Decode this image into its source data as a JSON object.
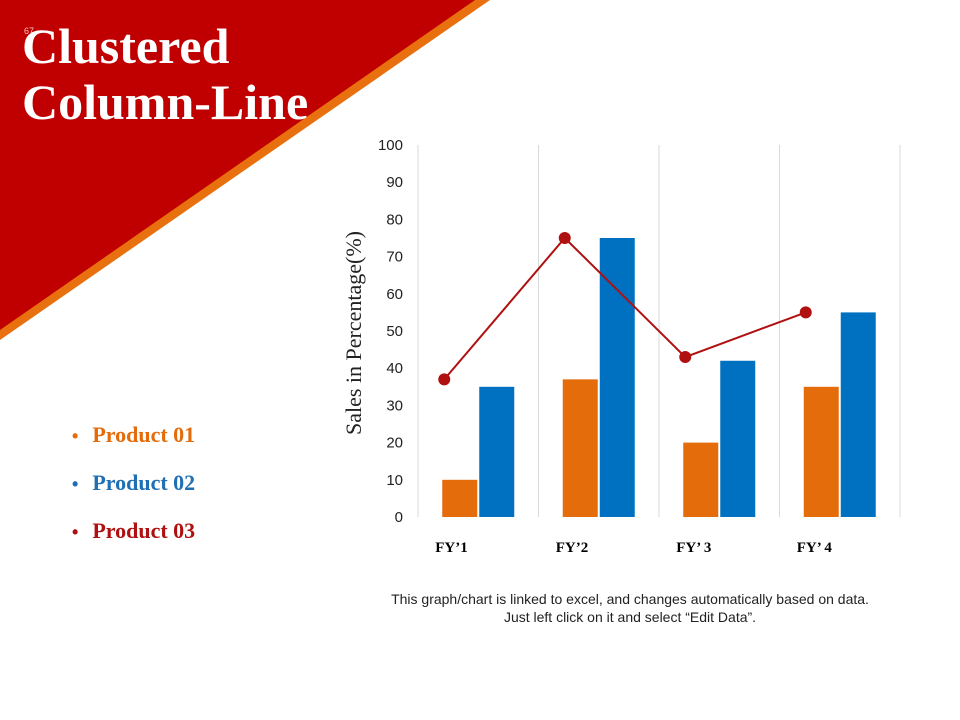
{
  "slide": {
    "title": "Clustered Column-Line",
    "number": "67",
    "footnote": "This graph/chart is linked to excel, and changes automatically based on data. Just left click on it and select “Edit Data”."
  },
  "colors": {
    "banner_red": "#C00000",
    "banner_stripe": "#E8700F",
    "product_01": "#E46C0A",
    "product_02": "#0070C0",
    "product_03": "#B01010"
  },
  "legend": [
    {
      "label": "Product 01",
      "color": "#E46C0A"
    },
    {
      "label": "Product 02",
      "color": "#1F6FB5"
    },
    {
      "label": "Product 03",
      "color": "#B01010"
    }
  ],
  "chart_data": {
    "type": "bar",
    "categories": [
      "FY’1",
      "FY’2",
      "FY’ 3",
      "FY’ 4"
    ],
    "ylabel": "Sales in Percentage(%)",
    "ylim": [
      0,
      100
    ],
    "yticks": [
      0,
      10,
      20,
      30,
      40,
      50,
      60,
      70,
      80,
      90,
      100
    ],
    "grid": "vertical",
    "series": [
      {
        "name": "Product 01",
        "type": "bar",
        "color": "#E46C0A",
        "values": [
          10,
          37,
          20,
          35
        ]
      },
      {
        "name": "Product 02",
        "type": "bar",
        "color": "#0070C0",
        "values": [
          35,
          75,
          42,
          55
        ]
      },
      {
        "name": "Product 03",
        "type": "line",
        "color": "#B01010",
        "values": [
          37,
          75,
          43,
          55
        ]
      }
    ]
  }
}
